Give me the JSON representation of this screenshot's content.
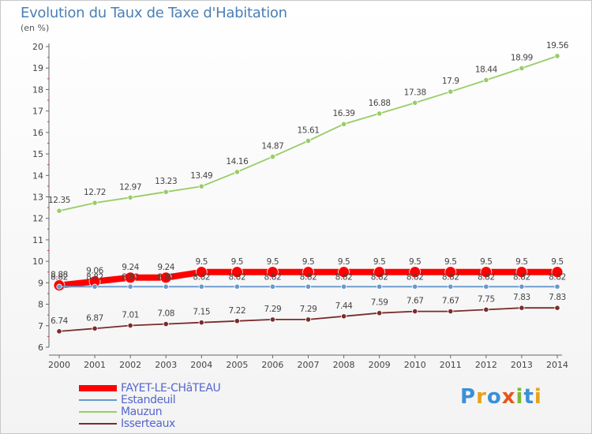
{
  "title": "Evolution du Taux de Taxe d'Habitation",
  "unit": "(en %)",
  "logo_text": "Proxiti",
  "colors": {
    "FAYET-LE-CHâTEAU": "#ff0000",
    "Estandeuil": "#6699cc",
    "Mauzun": "#99cc66",
    "Isserteaux": "#7a2b2b"
  },
  "chart_data": {
    "type": "line",
    "x": [
      2000,
      2001,
      2002,
      2003,
      2004,
      2005,
      2006,
      2007,
      2008,
      2009,
      2010,
      2011,
      2012,
      2013,
      2014
    ],
    "ylim": [
      6,
      20
    ],
    "yticks": [
      6,
      7,
      8,
      9,
      10,
      11,
      12,
      13,
      14,
      15,
      16,
      17,
      18,
      19,
      20
    ],
    "grid": false,
    "legend_position": "bottom-left",
    "series": [
      {
        "name": "FAYET-LE-CHâTEAU",
        "values": [
          8.88,
          9.06,
          9.24,
          9.24,
          9.5,
          9.5,
          9.5,
          9.5,
          9.5,
          9.5,
          9.5,
          9.5,
          9.5,
          9.5,
          9.5
        ],
        "labels": [
          "8.88",
          "9.06",
          "9.24",
          "9.24",
          "9.5",
          "9.5",
          "9.5",
          "9.5",
          "9.5",
          "9.5",
          "9.5",
          "9.5",
          "9.5",
          "9.5",
          "9.5"
        ]
      },
      {
        "name": "Estandeuil",
        "values": [
          8.82,
          8.82,
          8.82,
          8.82,
          8.82,
          8.82,
          8.82,
          8.82,
          8.82,
          8.82,
          8.82,
          8.82,
          8.82,
          8.82,
          8.82
        ],
        "labels": [
          "8.82",
          "8.82",
          "8.82",
          "8.82",
          "8.82",
          "8.82",
          "8.82",
          "8.82",
          "8.82",
          "8.82",
          "8.82",
          "8.82",
          "8.82",
          "8.82",
          "8.82"
        ]
      },
      {
        "name": "Mauzun",
        "values": [
          12.35,
          12.72,
          12.97,
          13.23,
          13.49,
          14.16,
          14.87,
          15.61,
          16.39,
          16.88,
          17.38,
          17.9,
          18.44,
          18.99,
          19.56
        ],
        "labels": [
          "12.35",
          "12.72",
          "12.97",
          "13.23",
          "13.49",
          "14.16",
          "14.87",
          "15.61",
          "16.39",
          "16.88",
          "17.38",
          "17.9",
          "18.44",
          "18.99",
          "19.56"
        ]
      },
      {
        "name": "Isserteaux",
        "values": [
          6.74,
          6.87,
          7.01,
          7.08,
          7.15,
          7.22,
          7.29,
          7.29,
          7.44,
          7.59,
          7.67,
          7.67,
          7.75,
          7.83,
          7.83
        ],
        "labels": [
          "6.74",
          "6.87",
          "7.01",
          "7.08",
          "7.15",
          "7.22",
          "7.29",
          "7.29",
          "7.44",
          "7.59",
          "7.67",
          "7.67",
          "7.75",
          "7.83",
          "7.83"
        ]
      }
    ]
  }
}
